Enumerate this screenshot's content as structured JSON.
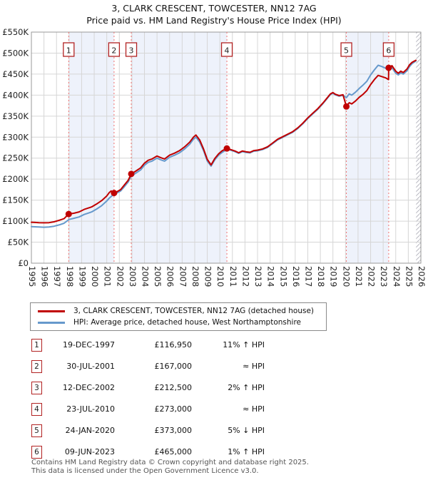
{
  "title": {
    "line1": "3, CLARK CRESCENT, TOWCESTER, NN12 7AG",
    "line2": "Price paid vs. HM Land Registry's House Price Index (HPI)"
  },
  "legend": {
    "items": [
      {
        "label": "3, CLARK CRESCENT, TOWCESTER, NN12 7AG (detached house)",
        "color": "#c00000"
      },
      {
        "label": "HPI: Average price, detached house, West Northamptonshire",
        "color": "#6699cc"
      }
    ]
  },
  "chart_data": {
    "type": "line",
    "title": "Price paid vs. HM Land Registry's House Price Index (HPI)",
    "xlabel": "",
    "ylabel": "",
    "xlim": [
      1995,
      2026
    ],
    "ylim": [
      0,
      550
    ],
    "grid": true,
    "x_ticks": [
      1995,
      1996,
      1997,
      1998,
      1999,
      2000,
      2001,
      2002,
      2003,
      2004,
      2005,
      2006,
      2007,
      2008,
      2009,
      2010,
      2011,
      2012,
      2013,
      2014,
      2015,
      2016,
      2017,
      2018,
      2019,
      2020,
      2021,
      2022,
      2023,
      2024,
      2025,
      2026
    ],
    "y_ticks": [
      {
        "v": 0,
        "label": "£0"
      },
      {
        "v": 50,
        "label": "£50K"
      },
      {
        "v": 100,
        "label": "£100K"
      },
      {
        "v": 150,
        "label": "£150K"
      },
      {
        "v": 200,
        "label": "£200K"
      },
      {
        "v": 250,
        "label": "£250K"
      },
      {
        "v": 300,
        "label": "£300K"
      },
      {
        "v": 350,
        "label": "£350K"
      },
      {
        "v": 400,
        "label": "£400K"
      },
      {
        "v": 450,
        "label": "£450K"
      },
      {
        "v": 500,
        "label": "£500K"
      },
      {
        "v": 550,
        "label": "£550K"
      }
    ],
    "unit": "GBP thousands",
    "bands_shaded_color": "#eef2fb",
    "bands": [
      [
        1995,
        1997.97,
        0
      ],
      [
        1997.97,
        2001.58,
        1
      ],
      [
        2001.58,
        2002.95,
        0
      ],
      [
        2002.95,
        2010.56,
        1
      ],
      [
        2010.56,
        2020.07,
        0
      ],
      [
        2020.07,
        2023.44,
        1
      ],
      [
        2023.44,
        2026,
        0
      ]
    ],
    "hatch_from": 2025.62,
    "sales": [
      {
        "n": "1",
        "year": 1997.97,
        "price": 116.95
      },
      {
        "n": "2",
        "year": 2001.58,
        "price": 167
      },
      {
        "n": "3",
        "year": 2002.95,
        "price": 212.5
      },
      {
        "n": "4",
        "year": 2010.56,
        "price": 273
      },
      {
        "n": "5",
        "year": 2020.07,
        "price": 373
      },
      {
        "n": "6",
        "year": 2023.44,
        "price": 465
      }
    ],
    "series": [
      {
        "name": "3, CLARK CRESCENT, TOWCESTER, NN12 7AG (detached house)",
        "color": "#c00000",
        "width": 2,
        "points": [
          [
            1995.0,
            97.5
          ],
          [
            1995.3,
            97
          ],
          [
            1995.6,
            96.5
          ],
          [
            1996.0,
            96
          ],
          [
            1996.4,
            96.5
          ],
          [
            1996.8,
            98.5
          ],
          [
            1997.2,
            102
          ],
          [
            1997.6,
            106
          ],
          [
            1997.97,
            116.95
          ],
          [
            1998.4,
            119
          ],
          [
            1998.8,
            122
          ],
          [
            1999.2,
            128
          ],
          [
            1999.5,
            131
          ],
          [
            1999.8,
            134
          ],
          [
            2000.2,
            141
          ],
          [
            2000.6,
            149
          ],
          [
            2001.0,
            160
          ],
          [
            2001.2,
            168
          ],
          [
            2001.35,
            172
          ],
          [
            2001.58,
            167
          ],
          [
            2001.8,
            170
          ],
          [
            2002.1,
            175
          ],
          [
            2002.4,
            186
          ],
          [
            2002.7,
            197
          ],
          [
            2002.95,
            212.5
          ],
          [
            2003.3,
            219
          ],
          [
            2003.7,
            227
          ],
          [
            2004.0,
            238
          ],
          [
            2004.3,
            245
          ],
          [
            2004.6,
            248
          ],
          [
            2005.0,
            255
          ],
          [
            2005.3,
            251
          ],
          [
            2005.6,
            248
          ],
          [
            2006.0,
            257
          ],
          [
            2006.4,
            262
          ],
          [
            2006.8,
            268
          ],
          [
            2007.2,
            277
          ],
          [
            2007.6,
            288
          ],
          [
            2007.9,
            300
          ],
          [
            2008.1,
            305
          ],
          [
            2008.4,
            293
          ],
          [
            2008.7,
            272
          ],
          [
            2009.0,
            247
          ],
          [
            2009.3,
            234
          ],
          [
            2009.6,
            249
          ],
          [
            2009.9,
            260
          ],
          [
            2010.2,
            268
          ],
          [
            2010.56,
            273
          ],
          [
            2010.9,
            270
          ],
          [
            2011.2,
            267
          ],
          [
            2011.5,
            263
          ],
          [
            2011.8,
            267
          ],
          [
            2012.1,
            265
          ],
          [
            2012.4,
            264
          ],
          [
            2012.7,
            268
          ],
          [
            2013.0,
            269
          ],
          [
            2013.4,
            272
          ],
          [
            2013.8,
            277
          ],
          [
            2014.2,
            286
          ],
          [
            2014.6,
            295
          ],
          [
            2015.0,
            301
          ],
          [
            2015.4,
            307
          ],
          [
            2015.8,
            313
          ],
          [
            2016.2,
            322
          ],
          [
            2016.6,
            333
          ],
          [
            2017.0,
            346
          ],
          [
            2017.4,
            357
          ],
          [
            2017.8,
            368
          ],
          [
            2018.2,
            381
          ],
          [
            2018.5,
            392
          ],
          [
            2018.8,
            403
          ],
          [
            2019.0,
            406
          ],
          [
            2019.2,
            402
          ],
          [
            2019.5,
            399
          ],
          [
            2019.8,
            401
          ],
          [
            2020.07,
            373
          ],
          [
            2020.3,
            382
          ],
          [
            2020.5,
            379
          ],
          [
            2020.8,
            386
          ],
          [
            2021.1,
            395
          ],
          [
            2021.4,
            402
          ],
          [
            2021.7,
            411
          ],
          [
            2022.0,
            425
          ],
          [
            2022.3,
            437
          ],
          [
            2022.6,
            447
          ],
          [
            2022.9,
            444
          ],
          [
            2023.2,
            441
          ],
          [
            2023.43,
            437
          ],
          [
            2023.44,
            465
          ],
          [
            2023.7,
            470
          ],
          [
            2024.0,
            457
          ],
          [
            2024.2,
            452
          ],
          [
            2024.4,
            457
          ],
          [
            2024.6,
            454
          ],
          [
            2024.9,
            462
          ],
          [
            2025.1,
            472
          ],
          [
            2025.3,
            478
          ],
          [
            2025.6,
            483
          ]
        ]
      },
      {
        "name": "HPI: Average price, detached house, West Northamptonshire",
        "color": "#6699cc",
        "width": 2,
        "points": [
          [
            1995.0,
            87
          ],
          [
            1995.3,
            86.5
          ],
          [
            1995.6,
            86
          ],
          [
            1996.0,
            85.5
          ],
          [
            1996.4,
            86
          ],
          [
            1996.8,
            88
          ],
          [
            1997.2,
            91
          ],
          [
            1997.6,
            95
          ],
          [
            1998.0,
            104
          ],
          [
            1998.4,
            107
          ],
          [
            1998.8,
            110
          ],
          [
            1999.2,
            116
          ],
          [
            1999.5,
            119
          ],
          [
            1999.8,
            122
          ],
          [
            2000.2,
            129
          ],
          [
            2000.6,
            137
          ],
          [
            2001.0,
            148
          ],
          [
            2001.2,
            155
          ],
          [
            2001.4,
            160
          ],
          [
            2001.58,
            164
          ],
          [
            2001.8,
            167
          ],
          [
            2002.1,
            172
          ],
          [
            2002.4,
            182
          ],
          [
            2002.7,
            193
          ],
          [
            2002.95,
            208
          ],
          [
            2003.3,
            214
          ],
          [
            2003.7,
            222
          ],
          [
            2004.0,
            233
          ],
          [
            2004.3,
            240
          ],
          [
            2004.6,
            243
          ],
          [
            2005.0,
            250
          ],
          [
            2005.3,
            246
          ],
          [
            2005.6,
            243
          ],
          [
            2006.0,
            252
          ],
          [
            2006.4,
            257
          ],
          [
            2006.8,
            263
          ],
          [
            2007.2,
            272
          ],
          [
            2007.6,
            283
          ],
          [
            2007.9,
            295
          ],
          [
            2008.1,
            300
          ],
          [
            2008.4,
            288
          ],
          [
            2008.7,
            268
          ],
          [
            2009.0,
            243
          ],
          [
            2009.3,
            231
          ],
          [
            2009.6,
            246
          ],
          [
            2009.9,
            257
          ],
          [
            2010.2,
            264
          ],
          [
            2010.56,
            271
          ],
          [
            2010.9,
            268.5
          ],
          [
            2011.2,
            265.5
          ],
          [
            2011.5,
            261.5
          ],
          [
            2011.8,
            265.5
          ],
          [
            2012.1,
            263.5
          ],
          [
            2012.4,
            262.5
          ],
          [
            2012.7,
            266.5
          ],
          [
            2013.0,
            267.5
          ],
          [
            2013.4,
            270.5
          ],
          [
            2013.8,
            275.5
          ],
          [
            2014.2,
            284.5
          ],
          [
            2014.6,
            293.5
          ],
          [
            2015.0,
            299.5
          ],
          [
            2015.4,
            305.5
          ],
          [
            2015.8,
            311.5
          ],
          [
            2016.2,
            320.5
          ],
          [
            2016.6,
            331.5
          ],
          [
            2017.0,
            344.5
          ],
          [
            2017.4,
            355.5
          ],
          [
            2017.8,
            366.5
          ],
          [
            2018.2,
            379.5
          ],
          [
            2018.5,
            390.5
          ],
          [
            2018.8,
            401.5
          ],
          [
            2019.0,
            404.5
          ],
          [
            2019.2,
            400.5
          ],
          [
            2019.5,
            397.5
          ],
          [
            2019.8,
            399.5
          ],
          [
            2020.07,
            394
          ],
          [
            2020.3,
            403
          ],
          [
            2020.5,
            400
          ],
          [
            2020.8,
            407
          ],
          [
            2021.1,
            416
          ],
          [
            2021.4,
            424
          ],
          [
            2021.7,
            433
          ],
          [
            2022.0,
            448
          ],
          [
            2022.3,
            460
          ],
          [
            2022.6,
            471
          ],
          [
            2022.9,
            468
          ],
          [
            2023.2,
            464
          ],
          [
            2023.44,
            460
          ],
          [
            2023.7,
            465
          ],
          [
            2024.0,
            452
          ],
          [
            2024.2,
            448
          ],
          [
            2024.4,
            453
          ],
          [
            2024.6,
            450
          ],
          [
            2024.9,
            458
          ],
          [
            2025.1,
            468
          ],
          [
            2025.3,
            475
          ],
          [
            2025.6,
            481
          ]
        ]
      }
    ]
  },
  "table": {
    "rows": [
      {
        "num": "1",
        "date": "19-DEC-1997",
        "price": "£116,950",
        "hpi": "11% ↑ HPI"
      },
      {
        "num": "2",
        "date": "30-JUL-2001",
        "price": "£167,000",
        "hpi": "≈ HPI"
      },
      {
        "num": "3",
        "date": "12-DEC-2002",
        "price": "£212,500",
        "hpi": "2% ↑ HPI"
      },
      {
        "num": "4",
        "date": "23-JUL-2010",
        "price": "£273,000",
        "hpi": "≈ HPI"
      },
      {
        "num": "5",
        "date": "24-JAN-2020",
        "price": "£373,000",
        "hpi": "5% ↓ HPI"
      },
      {
        "num": "6",
        "date": "09-JUN-2023",
        "price": "£465,000",
        "hpi": "1% ↑ HPI"
      }
    ]
  },
  "footer": {
    "line1": "Contains HM Land Registry data © Crown copyright and database right 2025.",
    "line2": "This data is licensed under the Open Government Licence v3.0."
  },
  "colors": {
    "price_line": "#c00000",
    "hpi_line": "#6699cc",
    "sale_dash": "#f07070",
    "marker_border": "#b22222",
    "band_shade": "#eef2fb",
    "grid": "#d6d6d6",
    "plot_border": "#999999"
  }
}
